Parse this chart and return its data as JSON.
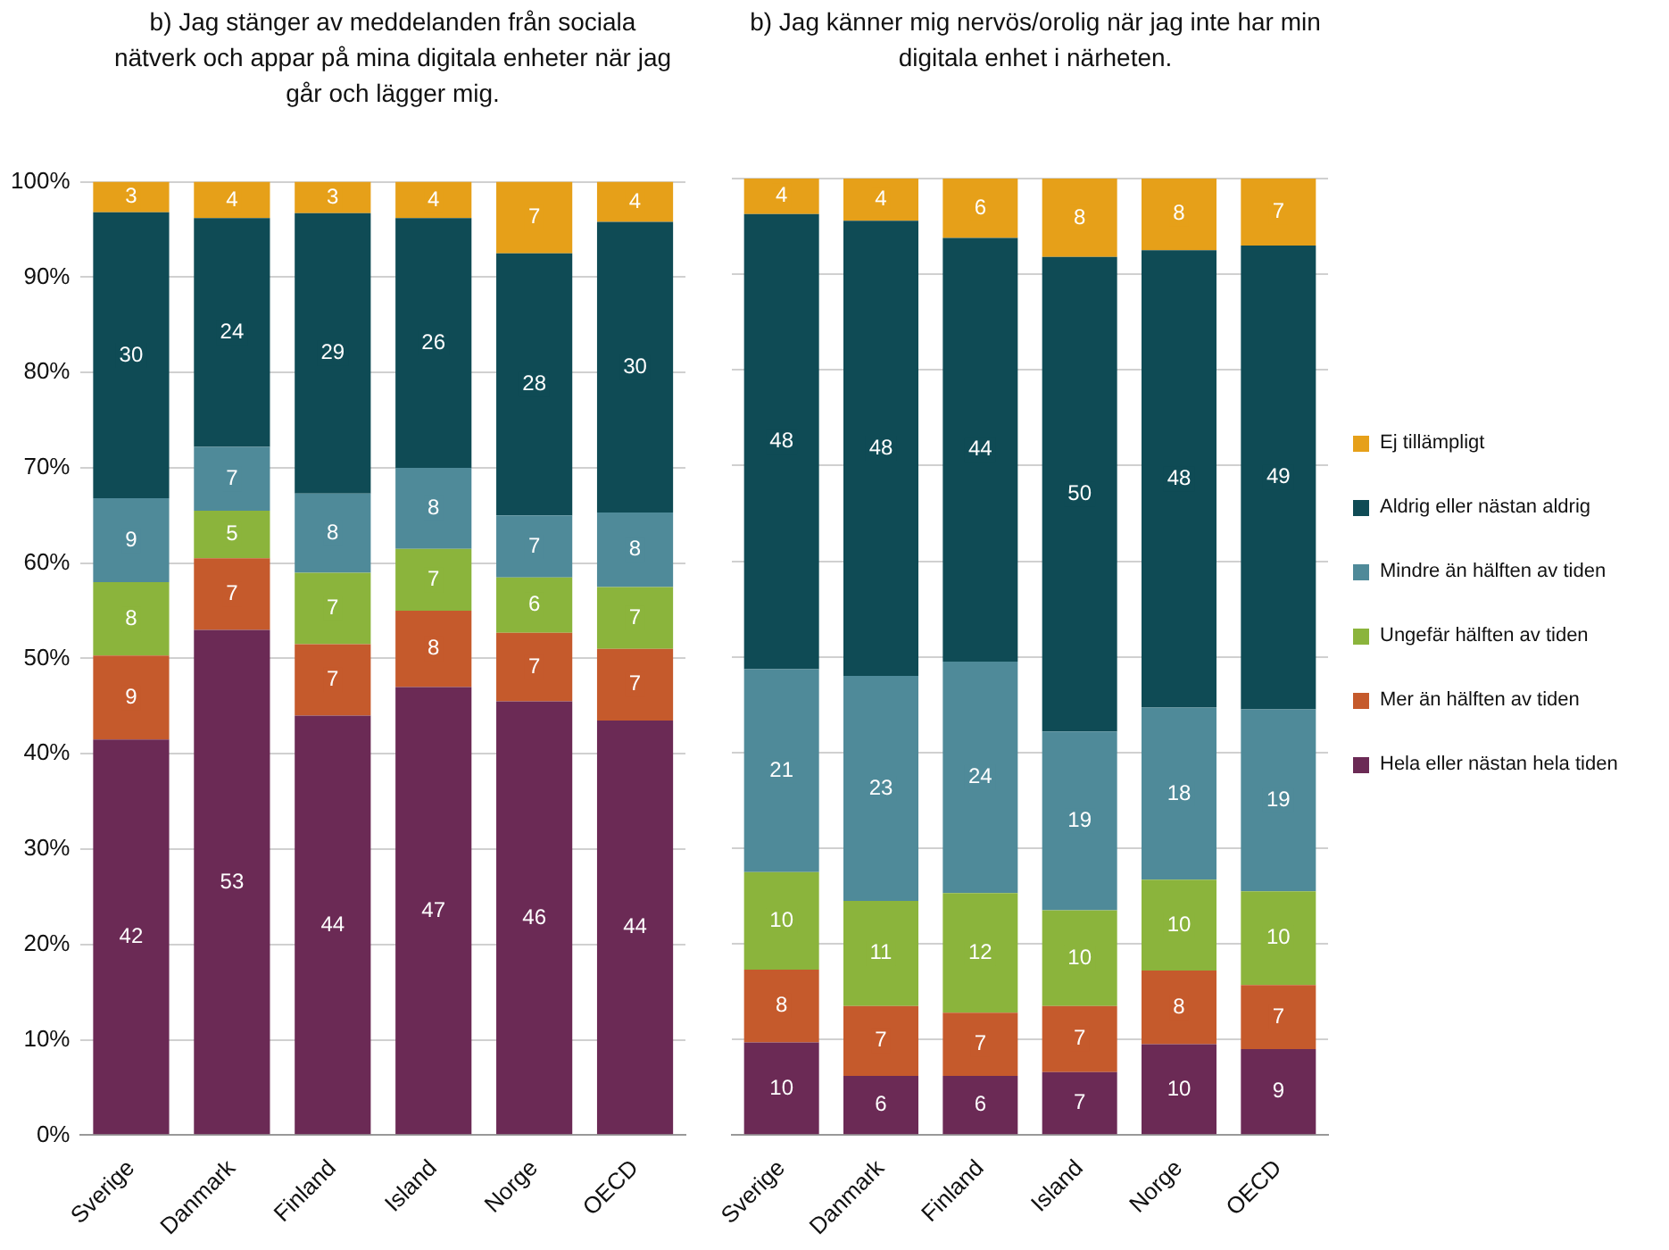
{
  "chart_data": [
    {
      "type": "bar",
      "title": "b) Jag stänger av meddelanden från sociala nätverk och appar på mina digitala enheter när jag går och lägger mig.",
      "categories": [
        "Sverige",
        "Danmark",
        "Finland",
        "Island",
        "Norge",
        "OECD"
      ],
      "stacked": true,
      "grid": "y",
      "legend": false,
      "ylim": [
        0,
        100
      ],
      "yticks": [
        {
          "value": 0,
          "label": "0%"
        },
        {
          "value": 10,
          "label": "10%"
        },
        {
          "value": 20,
          "label": "20%"
        },
        {
          "value": 30,
          "label": "30%"
        },
        {
          "value": 40,
          "label": "40%"
        },
        {
          "value": 50,
          "label": "50%"
        },
        {
          "value": 60,
          "label": "60%"
        },
        {
          "value": 70,
          "label": "70%"
        },
        {
          "value": 80,
          "label": "80%"
        },
        {
          "value": 90,
          "label": "90%"
        },
        {
          "value": 100,
          "label": "100%"
        }
      ],
      "series": [
        {
          "color": "#6b2a55",
          "values": [
            41.5,
            53,
            44,
            47,
            45.5,
            43.5
          ],
          "value_labels": [
            "42",
            "53",
            "44",
            "47",
            "46",
            "44"
          ]
        },
        {
          "color": "#c55a2c",
          "values": [
            8.8,
            7.5,
            7.5,
            8,
            7.2,
            7.5
          ],
          "value_labels": [
            "9",
            "7",
            "7",
            "8",
            "7",
            "7"
          ]
        },
        {
          "color": "#8bb43c",
          "values": [
            7.7,
            5,
            7.5,
            6.5,
            5.8,
            6.5
          ],
          "value_labels": [
            "8",
            "5",
            "7",
            "7",
            "6",
            "7"
          ]
        },
        {
          "color": "#4f8a99",
          "values": [
            8.8,
            6.7,
            8.3,
            8.5,
            6.5,
            7.8
          ],
          "value_labels": [
            "9",
            "7",
            "8",
            "8",
            "7",
            "8"
          ]
        },
        {
          "color": "#0f4b55",
          "values": [
            30,
            24,
            29.4,
            26.2,
            27.5,
            30.5
          ],
          "value_labels": [
            "30",
            "24",
            "29",
            "26",
            "28",
            "30"
          ]
        },
        {
          "color": "#e6a019",
          "values": [
            3.2,
            3.8,
            3.3,
            3.8,
            7.5,
            4.2
          ],
          "value_labels": [
            "3",
            "4",
            "3",
            "4",
            "7",
            "4"
          ]
        }
      ]
    },
    {
      "type": "bar",
      "title": "b) Jag känner mig nervös/orolig när jag inte har min digitala enhet i närheten.",
      "categories": [
        "Sverige",
        "Danmark",
        "Finland",
        "Island",
        "Norge",
        "OECD"
      ],
      "stacked": true,
      "grid": "y",
      "legend": "right",
      "tick_labels": "x",
      "ylim": [
        0,
        100
      ],
      "yticks": [
        {
          "value": 0,
          "label": null
        },
        {
          "value": 10,
          "label": null
        },
        {
          "value": 20,
          "label": null
        },
        {
          "value": 30,
          "label": null
        },
        {
          "value": 40,
          "label": null
        },
        {
          "value": 50,
          "label": null
        },
        {
          "value": 60,
          "label": null
        },
        {
          "value": 70,
          "label": null
        },
        {
          "value": 80,
          "label": null
        },
        {
          "value": 90,
          "label": null
        },
        {
          "value": 100,
          "label": null
        }
      ],
      "series": [
        {
          "name": "Hela eller nästan hela tiden",
          "color": "#6b2a55",
          "values": [
            9.7,
            6.2,
            6.2,
            6.6,
            9.5,
            9
          ],
          "value_labels": [
            "10",
            "6",
            "6",
            "7",
            "10",
            "9"
          ]
        },
        {
          "name": "Mer än hälften av tiden",
          "color": "#c55a2c",
          "values": [
            7.6,
            7.3,
            6.6,
            6.9,
            7.7,
            6.7
          ],
          "value_labels": [
            "8",
            "7",
            "7",
            "7",
            "8",
            "7"
          ]
        },
        {
          "name": "Ungefär hälften av tiden",
          "color": "#8bb43c",
          "values": [
            10.2,
            11,
            12.5,
            10,
            9.5,
            9.8
          ],
          "value_labels": [
            "10",
            "11",
            "12",
            "10",
            "10",
            "10"
          ]
        },
        {
          "name": "Mindre än hälften av tiden",
          "color": "#4f8a99",
          "values": [
            21.2,
            23.5,
            24.2,
            18.7,
            18,
            19
          ],
          "value_labels": [
            "21",
            "23",
            "24",
            "19",
            "18",
            "19"
          ]
        },
        {
          "name": "Aldrig eller nästan aldrig",
          "color": "#0f4b55",
          "values": [
            47.6,
            47.6,
            44.3,
            49.6,
            47.8,
            48.5
          ],
          "value_labels": [
            "48",
            "48",
            "44",
            "50",
            "48",
            "49"
          ]
        },
        {
          "name": "Ej tillämpligt",
          "color": "#e6a019",
          "values": [
            3.7,
            4.4,
            6.2,
            8.2,
            7.7,
            7
          ],
          "value_labels": [
            "4",
            "4",
            "6",
            "8",
            "8",
            "7"
          ]
        }
      ]
    }
  ]
}
